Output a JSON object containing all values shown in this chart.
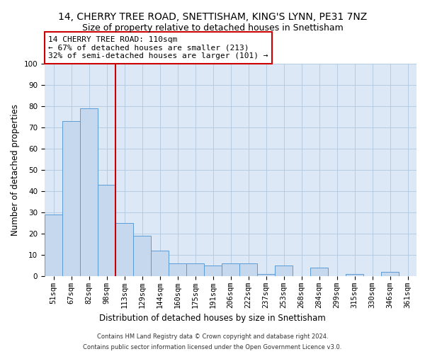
{
  "title1": "14, CHERRY TREE ROAD, SNETTISHAM, KING'S LYNN, PE31 7NZ",
  "title2": "Size of property relative to detached houses in Snettisham",
  "xlabel": "Distribution of detached houses by size in Snettisham",
  "ylabel": "Number of detached properties",
  "categories": [
    "51sqm",
    "67sqm",
    "82sqm",
    "98sqm",
    "113sqm",
    "129sqm",
    "144sqm",
    "160sqm",
    "175sqm",
    "191sqm",
    "206sqm",
    "222sqm",
    "237sqm",
    "253sqm",
    "268sqm",
    "284sqm",
    "299sqm",
    "315sqm",
    "330sqm",
    "346sqm",
    "361sqm"
  ],
  "values": [
    29,
    73,
    79,
    43,
    25,
    19,
    12,
    6,
    6,
    5,
    6,
    6,
    1,
    5,
    0,
    4,
    0,
    1,
    0,
    2,
    0
  ],
  "bar_color": "#c5d8ed",
  "bar_edge_color": "#5b9bd5",
  "vline_color": "#cc0000",
  "vline_pos": 3.5,
  "annotation_text": "14 CHERRY TREE ROAD: 110sqm\n← 67% of detached houses are smaller (213)\n32% of semi-detached houses are larger (101) →",
  "annotation_box_color": "#ffffff",
  "annotation_box_edge": "#cc0000",
  "ylim": [
    0,
    100
  ],
  "yticks": [
    0,
    10,
    20,
    30,
    40,
    50,
    60,
    70,
    80,
    90,
    100
  ],
  "plot_bg_color": "#dce8f5",
  "grid_color": "#b0c8e0",
  "footer1": "Contains HM Land Registry data © Crown copyright and database right 2024.",
  "footer2": "Contains public sector information licensed under the Open Government Licence v3.0.",
  "title1_fontsize": 10,
  "title2_fontsize": 9,
  "annot_fontsize": 8,
  "tick_fontsize": 7.5,
  "xlabel_fontsize": 8.5,
  "ylabel_fontsize": 8.5,
  "footer_fontsize": 6
}
